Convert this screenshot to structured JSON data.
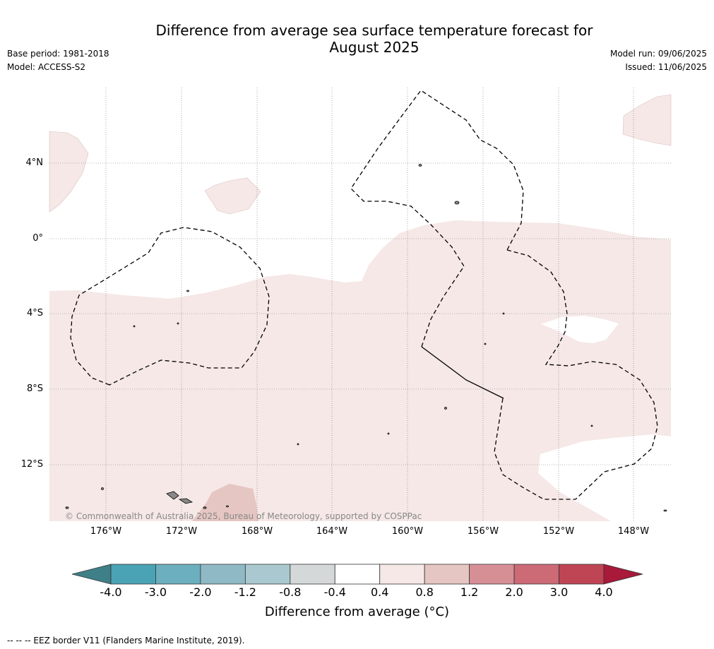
{
  "title_line1": "Difference from average sea surface temperature forecast for",
  "title_line2": "August 2025",
  "base_period": "Base period: 1981-2018",
  "model": "Model: ACCESS-S2",
  "model_run": "Model run: 09/06/2025",
  "issued": "Issued: 11/06/2025",
  "lat_labels": [
    "4°N",
    "0°",
    "4°S",
    "8°S",
    "12°S"
  ],
  "lon_labels": [
    "176°W",
    "172°W",
    "168°W",
    "164°W",
    "160°W",
    "156°W",
    "152°W",
    "148°W"
  ],
  "copyright": "© Commonwealth of Australia 2025, Bureau of Meteorology, supported by COSPPac",
  "colorbar": {
    "ticks": [
      "-4.0",
      "-3.0",
      "-2.0",
      "-1.2",
      "-0.8",
      "-0.4",
      "0.4",
      "0.8",
      "1.2",
      "2.0",
      "3.0",
      "4.0"
    ],
    "colors": [
      "#3f7f88",
      "#4aa3b4",
      "#6cafbe",
      "#8fbac5",
      "#aac8cf",
      "#d4d8d9",
      "#ffffff",
      "#f5e8e7",
      "#e6c6c2",
      "#d78f96",
      "#cc6a75",
      "#bf4555",
      "#a8193a"
    ],
    "label": "Difference from average (°C)"
  },
  "eez_note": "--  --  -- EEZ border V11 (Flanders Marine Institute, 2019).",
  "colors": {
    "light_anomaly": "#f5e8e7",
    "moderate_anomaly": "#e6c6c2",
    "land": "#888888"
  }
}
